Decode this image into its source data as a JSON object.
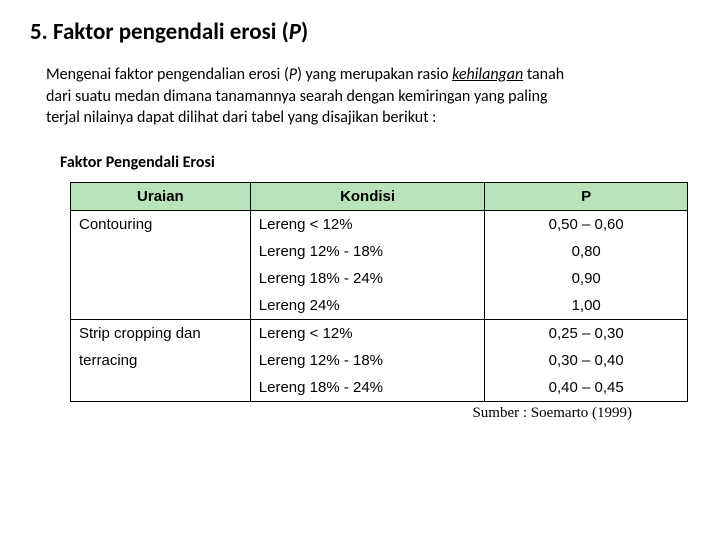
{
  "heading": {
    "number": "5.",
    "text_a": "Faktor pengendali erosi (",
    "text_p": "P",
    "text_b": ")"
  },
  "paragraph": {
    "l1a": "Mengenai faktor pengendalian erosi (",
    "l1p": "P",
    "l1b": ") yang merupakan rasio ",
    "l1c": "kehilangan",
    "l1d": " tanah",
    "l2": "dari suatu medan dimana tanamannya searah dengan kemiringan yang paling",
    "l3": "terjal nilainya dapat dilihat dari tabel yang disajikan berikut :"
  },
  "table": {
    "title": "Faktor Pengendali Erosi",
    "header_bg": "#b9e3b9",
    "headers": {
      "c1": "Uraian",
      "c2": "Kondisi",
      "c3": "P"
    },
    "rows": [
      {
        "uraian": "Contouring",
        "kondisi": "Lereng < 12%",
        "p": "0,50 – 0,60",
        "group_start": true
      },
      {
        "uraian": "",
        "kondisi": "Lereng 12% - 18%",
        "p": "0,80",
        "group_start": false
      },
      {
        "uraian": "",
        "kondisi": "Lereng 18% - 24%",
        "p": "0,90",
        "group_start": false
      },
      {
        "uraian": "",
        "kondisi": "Lereng 24%",
        "p": "1,00",
        "group_start": false
      },
      {
        "uraian": "Strip cropping dan",
        "kondisi": "Lereng < 12%",
        "p": "0,25 – 0,30",
        "group_start": true
      },
      {
        "uraian": "terracing",
        "kondisi": "Lereng 12% - 18%",
        "p": "0,30 – 0,40",
        "group_start": false
      },
      {
        "uraian": "",
        "kondisi": "Lereng 18% - 24%",
        "p": "0,40 – 0,45",
        "group_start": false
      }
    ]
  },
  "source": "Sumber : Soemarto (1999)"
}
